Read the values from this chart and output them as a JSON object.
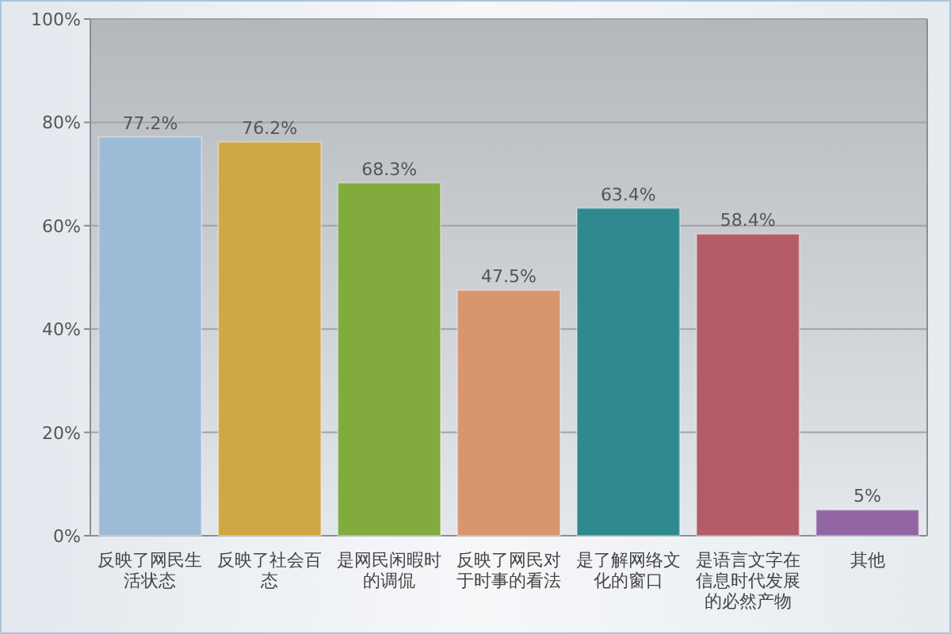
{
  "chart_data": {
    "type": "bar",
    "categories": [
      "反映了网民生活状态",
      "反映了社会百态",
      "是网民闲暇时的调侃",
      "反映了网民对于时事的看法",
      "是了解网络文化的窗口",
      "是语言文字在信息时代发展的必然产物",
      "其他"
    ],
    "values": [
      77.2,
      76.2,
      68.3,
      47.5,
      63.4,
      58.4,
      5
    ],
    "value_labels": [
      "77.2%",
      "76.2%",
      "68.3%",
      "47.5%",
      "63.4%",
      "58.4%",
      "5%"
    ],
    "colors": [
      "#9dbbd6",
      "#cfa843",
      "#82ab3e",
      "#d9966c",
      "#2f8a90",
      "#b35c66",
      "#9166a3"
    ],
    "ylim": [
      0,
      100
    ],
    "yticks": [
      {
        "value": 0,
        "label": "0%"
      },
      {
        "value": 20,
        "label": "20%"
      },
      {
        "value": 40,
        "label": "40%"
      },
      {
        "value": 60,
        "label": "60%"
      },
      {
        "value": 80,
        "label": "80%"
      },
      {
        "value": 100,
        "label": "100%"
      }
    ],
    "grid": "y"
  }
}
